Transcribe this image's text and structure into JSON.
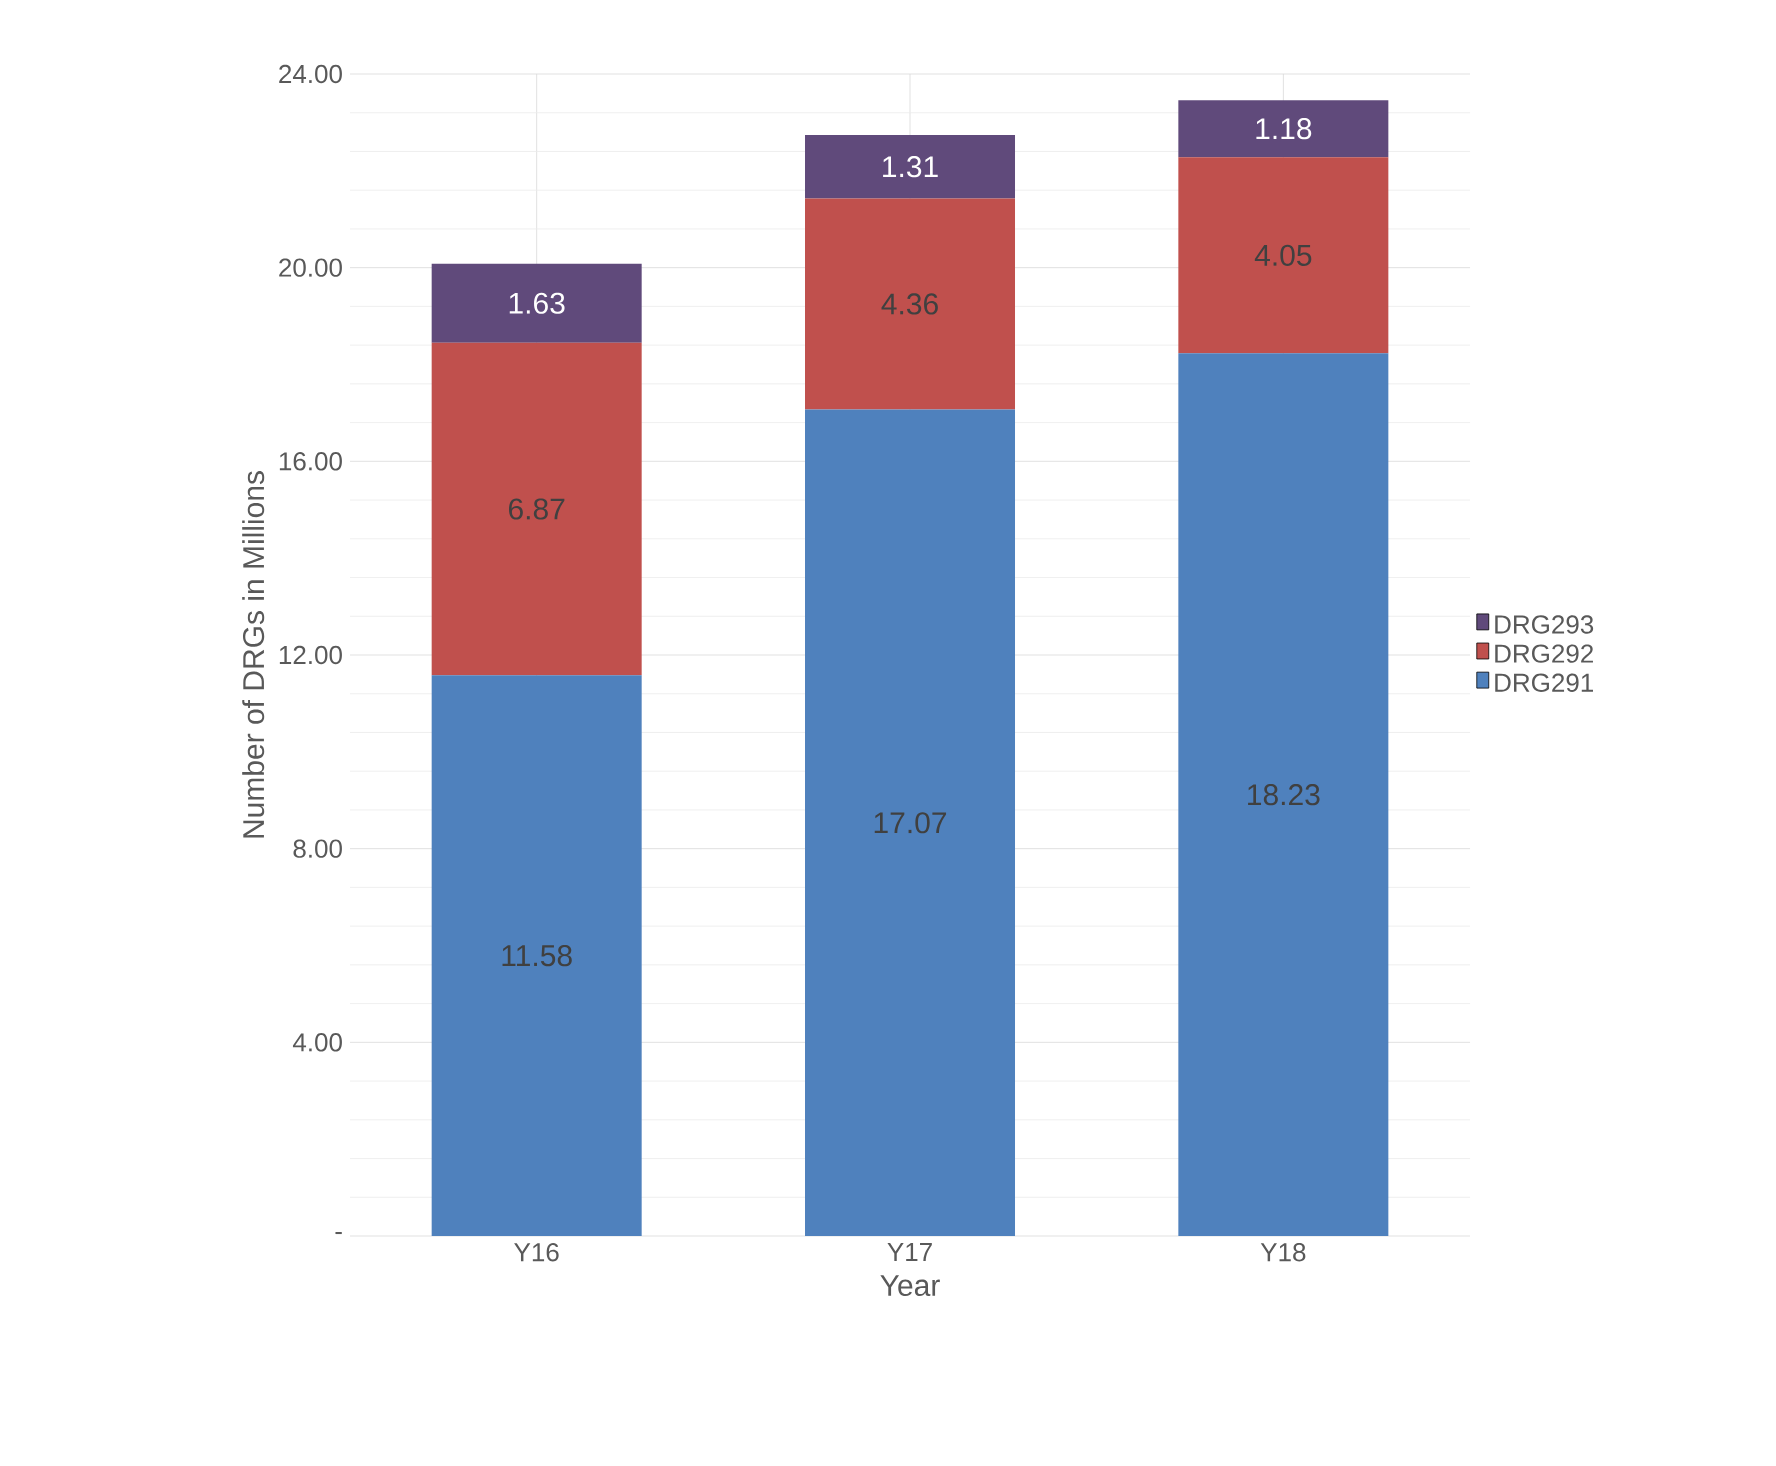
{
  "chart_data": {
    "type": "bar",
    "stacked": true,
    "xlabel": "Year",
    "ylabel": "Number of DRGs in Millions",
    "categories": [
      "Y16",
      "Y17",
      "Y18"
    ],
    "series": [
      {
        "name": "DRG291",
        "color": "#4f81bd",
        "values": [
          11.58,
          17.07,
          18.23
        ]
      },
      {
        "name": "DRG292",
        "color": "#c0504d",
        "values": [
          6.87,
          4.36,
          4.05
        ]
      },
      {
        "name": "DRG293",
        "color": "#604a7b",
        "values": [
          1.63,
          1.31,
          1.18
        ]
      }
    ],
    "ylim": [
      0,
      24
    ],
    "yticks": [
      {
        "value": 0,
        "label": "-"
      },
      {
        "value": 4,
        "label": "4.00"
      },
      {
        "value": 8,
        "label": "8.00"
      },
      {
        "value": 12,
        "label": "12.00"
      },
      {
        "value": 16,
        "label": "16.00"
      },
      {
        "value": 20,
        "label": "20.00"
      },
      {
        "value": 24,
        "label": "24.00"
      }
    ],
    "grid": true,
    "legend": "right",
    "data_labels": true
  }
}
